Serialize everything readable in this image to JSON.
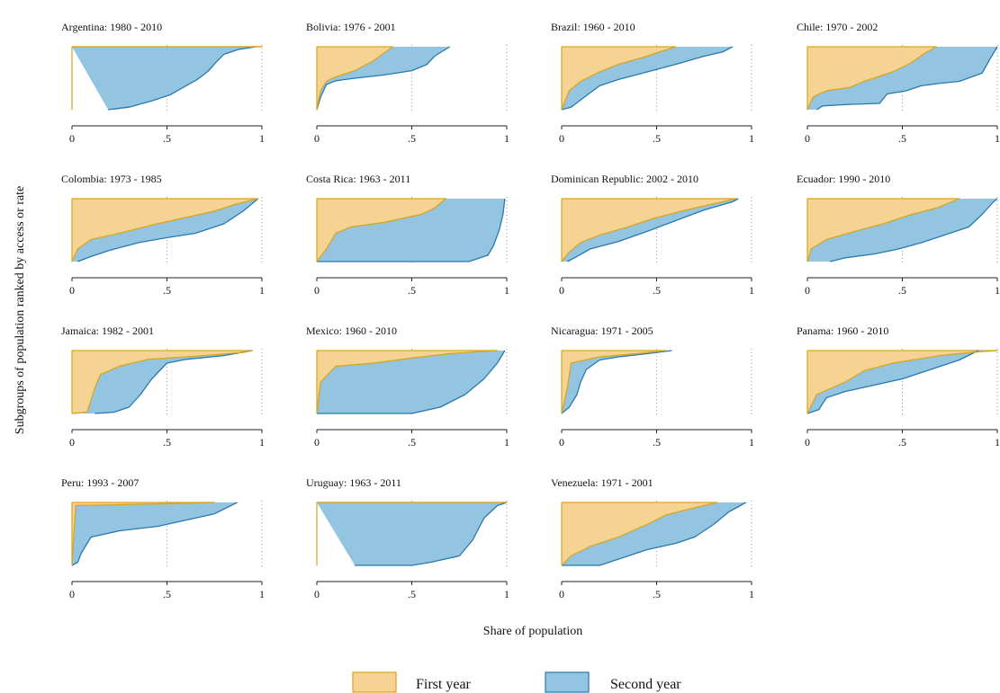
{
  "chart_data": {
    "type": "area",
    "xlabel": "Share of population",
    "ylabel": "Subgroups of population ranked by access or rate",
    "xlim": [
      0,
      1
    ],
    "ylim": [
      0,
      1
    ],
    "x_ticks": [
      "0",
      ".5",
      "1"
    ],
    "grid": "vertical dotted at .5 and 1",
    "legend_position": "bottom-center",
    "colors": {
      "first_fill": "#f5d493",
      "first_line": "#d9a520",
      "second_fill": "#93c5e0",
      "second_line": "#2679b0"
    },
    "series_names": [
      "First year",
      "Second year"
    ],
    "panels": [
      {
        "title": "Argentina: 1980 - 2010",
        "first_year": [
          [
            0,
            1
          ],
          [
            1,
            1
          ]
        ],
        "second_year": [
          [
            0.19,
            0
          ],
          [
            0.3,
            0.04
          ],
          [
            0.42,
            0.14
          ],
          [
            0.52,
            0.24
          ],
          [
            0.6,
            0.38
          ],
          [
            0.66,
            0.48
          ],
          [
            0.72,
            0.62
          ],
          [
            0.76,
            0.76
          ],
          [
            0.8,
            0.88
          ],
          [
            0.88,
            0.96
          ],
          [
            0.97,
            1
          ]
        ]
      },
      {
        "title": "Bolivia: 1976 - 2001",
        "first_year": [
          [
            0,
            0
          ],
          [
            0.02,
            0.3
          ],
          [
            0.05,
            0.45
          ],
          [
            0.1,
            0.52
          ],
          [
            0.2,
            0.62
          ],
          [
            0.3,
            0.78
          ],
          [
            0.4,
            1
          ]
        ],
        "second_year": [
          [
            0,
            0
          ],
          [
            0.02,
            0.2
          ],
          [
            0.05,
            0.4
          ],
          [
            0.1,
            0.46
          ],
          [
            0.2,
            0.5
          ],
          [
            0.35,
            0.55
          ],
          [
            0.5,
            0.62
          ],
          [
            0.58,
            0.72
          ],
          [
            0.62,
            0.85
          ],
          [
            0.7,
            1
          ]
        ]
      },
      {
        "title": "Brazil: 1960 - 2010",
        "first_year": [
          [
            0,
            0
          ],
          [
            0.04,
            0.3
          ],
          [
            0.1,
            0.45
          ],
          [
            0.2,
            0.6
          ],
          [
            0.3,
            0.72
          ],
          [
            0.45,
            0.85
          ],
          [
            0.6,
            1
          ]
        ],
        "second_year": [
          [
            0,
            0
          ],
          [
            0.05,
            0.04
          ],
          [
            0.12,
            0.2
          ],
          [
            0.2,
            0.38
          ],
          [
            0.3,
            0.48
          ],
          [
            0.45,
            0.6
          ],
          [
            0.6,
            0.72
          ],
          [
            0.75,
            0.85
          ],
          [
            0.85,
            0.92
          ],
          [
            0.9,
            1
          ]
        ]
      },
      {
        "title": "Chile: 1970 - 2002",
        "first_year": [
          [
            0,
            0
          ],
          [
            0.03,
            0.2
          ],
          [
            0.1,
            0.3
          ],
          [
            0.22,
            0.35
          ],
          [
            0.3,
            0.45
          ],
          [
            0.45,
            0.6
          ],
          [
            0.55,
            0.75
          ],
          [
            0.62,
            0.9
          ],
          [
            0.68,
            1
          ]
        ],
        "second_year": [
          [
            0.05,
            0
          ],
          [
            0.08,
            0.06
          ],
          [
            0.2,
            0.08
          ],
          [
            0.38,
            0.1
          ],
          [
            0.42,
            0.25
          ],
          [
            0.52,
            0.3
          ],
          [
            0.6,
            0.38
          ],
          [
            0.7,
            0.42
          ],
          [
            0.8,
            0.45
          ],
          [
            0.92,
            0.58
          ],
          [
            0.96,
            0.8
          ],
          [
            1,
            1
          ]
        ]
      },
      {
        "title": "Colombia: 1973 - 1985",
        "first_year": [
          [
            0,
            0
          ],
          [
            0.03,
            0.2
          ],
          [
            0.1,
            0.35
          ],
          [
            0.25,
            0.45
          ],
          [
            0.45,
            0.6
          ],
          [
            0.6,
            0.7
          ],
          [
            0.75,
            0.8
          ],
          [
            0.85,
            0.9
          ],
          [
            0.98,
            1
          ]
        ],
        "second_year": [
          [
            0.03,
            0
          ],
          [
            0.1,
            0.08
          ],
          [
            0.2,
            0.18
          ],
          [
            0.35,
            0.3
          ],
          [
            0.5,
            0.38
          ],
          [
            0.65,
            0.45
          ],
          [
            0.8,
            0.6
          ],
          [
            0.9,
            0.8
          ],
          [
            0.98,
            1
          ]
        ]
      },
      {
        "title": "Costa Rica: 1963 - 2011",
        "first_year": [
          [
            0,
            0
          ],
          [
            0.05,
            0.2
          ],
          [
            0.1,
            0.45
          ],
          [
            0.18,
            0.55
          ],
          [
            0.35,
            0.62
          ],
          [
            0.55,
            0.75
          ],
          [
            0.62,
            0.85
          ],
          [
            0.68,
            1
          ]
        ],
        "second_year": [
          [
            0,
            0
          ],
          [
            0.8,
            0
          ],
          [
            0.9,
            0.1
          ],
          [
            0.93,
            0.25
          ],
          [
            0.96,
            0.5
          ],
          [
            0.98,
            0.75
          ],
          [
            0.99,
            1
          ]
        ]
      },
      {
        "title": "Dominican Republic: 2002 - 2010",
        "first_year": [
          [
            0,
            0
          ],
          [
            0.04,
            0.15
          ],
          [
            0.1,
            0.3
          ],
          [
            0.2,
            0.42
          ],
          [
            0.35,
            0.55
          ],
          [
            0.5,
            0.7
          ],
          [
            0.7,
            0.85
          ],
          [
            0.85,
            0.95
          ],
          [
            0.92,
            1
          ]
        ],
        "second_year": [
          [
            0.03,
            0
          ],
          [
            0.08,
            0.08
          ],
          [
            0.15,
            0.2
          ],
          [
            0.3,
            0.32
          ],
          [
            0.45,
            0.48
          ],
          [
            0.6,
            0.65
          ],
          [
            0.75,
            0.82
          ],
          [
            0.9,
            0.95
          ],
          [
            0.93,
            1
          ]
        ]
      },
      {
        "title": "Ecuador: 1990 - 2010",
        "first_year": [
          [
            0,
            0
          ],
          [
            0.02,
            0.2
          ],
          [
            0.1,
            0.35
          ],
          [
            0.25,
            0.48
          ],
          [
            0.4,
            0.6
          ],
          [
            0.55,
            0.75
          ],
          [
            0.68,
            0.85
          ],
          [
            0.8,
            1
          ]
        ],
        "second_year": [
          [
            0.12,
            0
          ],
          [
            0.2,
            0.06
          ],
          [
            0.35,
            0.12
          ],
          [
            0.48,
            0.2
          ],
          [
            0.6,
            0.3
          ],
          [
            0.75,
            0.45
          ],
          [
            0.85,
            0.55
          ],
          [
            0.92,
            0.75
          ],
          [
            0.98,
            0.95
          ],
          [
            1,
            1
          ]
        ]
      },
      {
        "title": "Jamaica: 1982 - 2001",
        "first_year": [
          [
            0,
            0
          ],
          [
            0.08,
            0.02
          ],
          [
            0.12,
            0.4
          ],
          [
            0.15,
            0.62
          ],
          [
            0.25,
            0.75
          ],
          [
            0.4,
            0.86
          ],
          [
            0.7,
            0.92
          ],
          [
            0.9,
            0.97
          ],
          [
            0.95,
            1
          ]
        ],
        "second_year": [
          [
            0.12,
            0
          ],
          [
            0.22,
            0.02
          ],
          [
            0.3,
            0.1
          ],
          [
            0.36,
            0.3
          ],
          [
            0.42,
            0.55
          ],
          [
            0.5,
            0.8
          ],
          [
            0.6,
            0.86
          ],
          [
            0.8,
            0.92
          ],
          [
            0.95,
            1
          ]
        ]
      },
      {
        "title": "Mexico: 1960 - 2010",
        "first_year": [
          [
            0,
            0
          ],
          [
            0.02,
            0.5
          ],
          [
            0.1,
            0.75
          ],
          [
            0.3,
            0.8
          ],
          [
            0.5,
            0.88
          ],
          [
            0.7,
            0.95
          ],
          [
            0.95,
            1
          ]
        ],
        "second_year": [
          [
            0,
            0
          ],
          [
            0.5,
            0
          ],
          [
            0.65,
            0.1
          ],
          [
            0.78,
            0.3
          ],
          [
            0.88,
            0.55
          ],
          [
            0.95,
            0.8
          ],
          [
            0.99,
            1
          ]
        ]
      },
      {
        "title": "Nicaragua: 1971 - 2005",
        "first_year": [
          [
            0,
            0
          ],
          [
            0.03,
            0.4
          ],
          [
            0.05,
            0.8
          ],
          [
            0.2,
            0.9
          ],
          [
            0.4,
            0.95
          ],
          [
            0.55,
            1
          ]
        ],
        "second_year": [
          [
            0,
            0
          ],
          [
            0.04,
            0.1
          ],
          [
            0.08,
            0.3
          ],
          [
            0.1,
            0.5
          ],
          [
            0.13,
            0.7
          ],
          [
            0.2,
            0.85
          ],
          [
            0.3,
            0.9
          ],
          [
            0.45,
            0.95
          ],
          [
            0.58,
            1
          ]
        ]
      },
      {
        "title": "Panama: 1960 - 2010",
        "first_year": [
          [
            0,
            0
          ],
          [
            0.05,
            0.3
          ],
          [
            0.2,
            0.5
          ],
          [
            0.3,
            0.68
          ],
          [
            0.45,
            0.8
          ],
          [
            0.7,
            0.92
          ],
          [
            0.9,
            0.98
          ],
          [
            1,
            1
          ]
        ],
        "second_year": [
          [
            0,
            0
          ],
          [
            0.06,
            0.06
          ],
          [
            0.1,
            0.25
          ],
          [
            0.2,
            0.35
          ],
          [
            0.35,
            0.45
          ],
          [
            0.5,
            0.55
          ],
          [
            0.7,
            0.75
          ],
          [
            0.8,
            0.85
          ],
          [
            0.9,
            1
          ]
        ]
      },
      {
        "title": "Peru: 1993 - 2007",
        "first_year": [
          [
            0,
            0
          ],
          [
            0.02,
            0.95
          ],
          [
            0.5,
            0.98
          ],
          [
            0.75,
            1
          ]
        ],
        "second_year": [
          [
            0,
            0
          ],
          [
            0.03,
            0.05
          ],
          [
            0.05,
            0.2
          ],
          [
            0.1,
            0.45
          ],
          [
            0.25,
            0.55
          ],
          [
            0.45,
            0.62
          ],
          [
            0.6,
            0.72
          ],
          [
            0.75,
            0.82
          ],
          [
            0.87,
            1
          ]
        ]
      },
      {
        "title": "Uruguay: 1963 - 2011",
        "first_year": [
          [
            0,
            1
          ],
          [
            1,
            1
          ]
        ],
        "second_year": [
          [
            0.2,
            0
          ],
          [
            0.5,
            0
          ],
          [
            0.6,
            0.05
          ],
          [
            0.75,
            0.15
          ],
          [
            0.82,
            0.4
          ],
          [
            0.88,
            0.75
          ],
          [
            0.95,
            0.95
          ],
          [
            1,
            1
          ]
        ]
      },
      {
        "title": "Venezuela: 1971 - 2001",
        "first_year": [
          [
            0,
            0
          ],
          [
            0.05,
            0.15
          ],
          [
            0.15,
            0.3
          ],
          [
            0.3,
            0.45
          ],
          [
            0.45,
            0.65
          ],
          [
            0.55,
            0.8
          ],
          [
            0.68,
            0.9
          ],
          [
            0.82,
            1
          ]
        ],
        "second_year": [
          [
            0,
            0
          ],
          [
            0.2,
            0
          ],
          [
            0.3,
            0.1
          ],
          [
            0.45,
            0.25
          ],
          [
            0.6,
            0.35
          ],
          [
            0.7,
            0.45
          ],
          [
            0.8,
            0.65
          ],
          [
            0.88,
            0.85
          ],
          [
            0.97,
            1
          ]
        ]
      }
    ]
  }
}
